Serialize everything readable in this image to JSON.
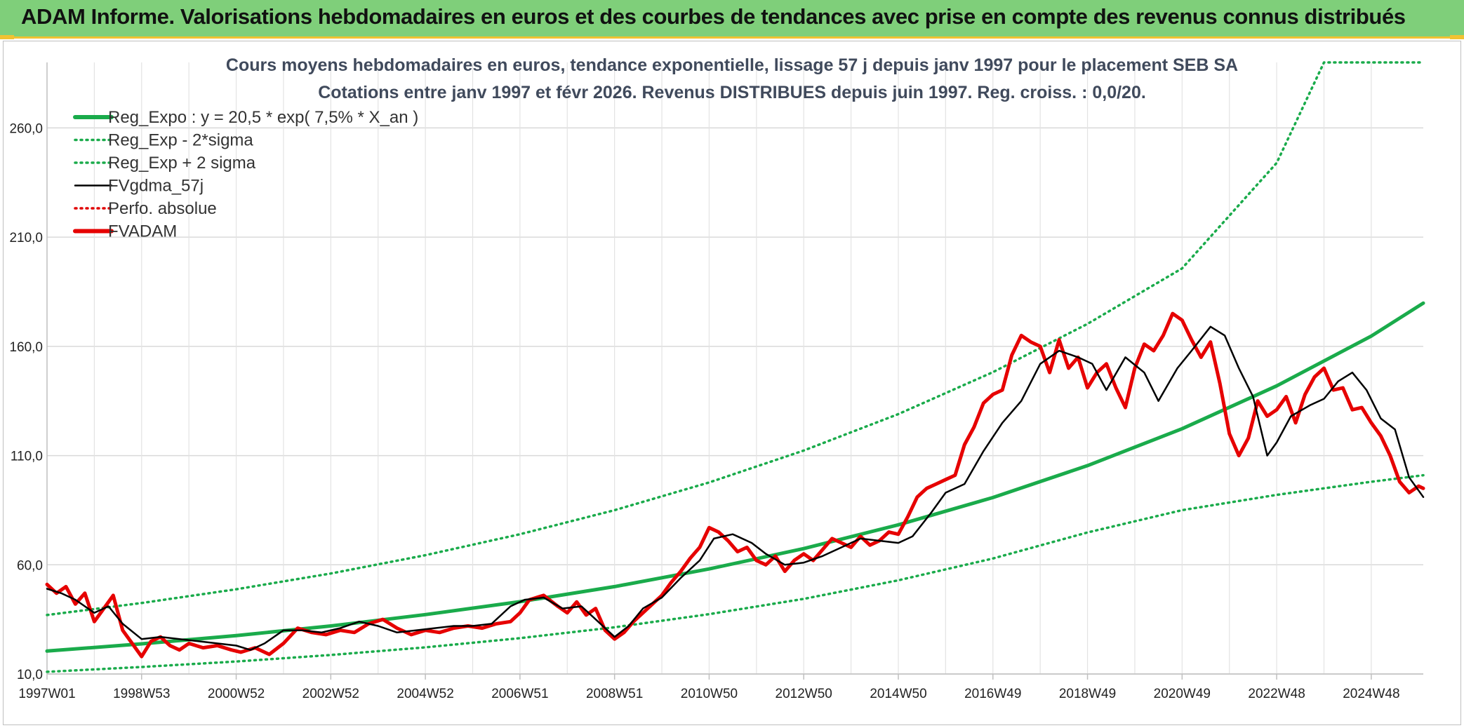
{
  "header": {
    "title": "ADAM Informe. Valorisations hebdomadaires en euros et des courbes de tendances avec prise en compte des revenus connus distribués",
    "bg_color": "#7fcf7a",
    "accent_color": "#f1c232"
  },
  "chart_data": {
    "type": "line",
    "title_line1": "Cours moyens hebdomadaires en euros, tendance exponentielle, lissage 57 j depuis janv 1997 pour le placement SEB SA",
    "title_line2": "Cotations entre janv 1997 et févr 2026. Revenus DISTRIBUES depuis juin 1997. Reg. croiss. : 0,0/20.",
    "ylim": [
      10,
      290
    ],
    "yticks": [
      10,
      60,
      110,
      160,
      210,
      260
    ],
    "ytick_labels": [
      "10,0",
      "60,0",
      "110,0",
      "160,0",
      "210,0",
      "260,0"
    ],
    "xlim": [
      1997.0,
      2026.1
    ],
    "xtick_labels": [
      "1997W01",
      "1998W53",
      "2000W52",
      "2002W52",
      "2004W52",
      "2006W51",
      "2008W51",
      "2010W50",
      "2012W50",
      "2014W50",
      "2016W49",
      "2018W49",
      "2020W49",
      "2022W48",
      "2024W48"
    ],
    "xtick_positions": [
      1997.0,
      1999.0,
      2001.0,
      2003.0,
      2005.0,
      2007.0,
      2009.0,
      2011.0,
      2013.0,
      2015.0,
      2017.0,
      2019.0,
      2021.0,
      2023.0,
      2025.0
    ],
    "grid": true,
    "legend_placement": "top-left",
    "series": [
      {
        "name": "Reg_Expo : y = 20,5 * exp( 7,5% *  X_an )",
        "color": "#1aab4b",
        "style": "solid-thick",
        "x": [
          1997.0,
          1999.0,
          2001.0,
          2003.0,
          2005.0,
          2007.0,
          2009.0,
          2011.0,
          2013.0,
          2015.0,
          2017.0,
          2019.0,
          2021.0,
          2023.0,
          2025.0,
          2026.1
        ],
        "values": [
          20.5,
          23.8,
          27.6,
          32.0,
          37.2,
          43.1,
          50.0,
          58.1,
          67.4,
          78.3,
          90.8,
          105.4,
          122.3,
          141.9,
          164.7,
          179.8
        ]
      },
      {
        "name": "Reg_Exp - 2*sigma",
        "color": "#1aab4b",
        "style": "dotted",
        "x": [
          1997.0,
          1999.0,
          2001.0,
          2003.0,
          2005.0,
          2007.0,
          2009.0,
          2011.0,
          2013.0,
          2015.0,
          2017.0,
          2019.0,
          2021.0,
          2023.0,
          2025.0,
          2026.1
        ],
        "values": [
          11.0,
          13.2,
          15.7,
          18.7,
          22.2,
          26.4,
          31.4,
          37.4,
          44.4,
          52.9,
          62.9,
          74.8,
          85.0,
          92.0,
          98.0,
          101.0
        ]
      },
      {
        "name": "Reg_Exp + 2 sigma",
        "color": "#1aab4b",
        "style": "dotted",
        "x": [
          1997.0,
          1999.0,
          2001.0,
          2003.0,
          2005.0,
          2007.0,
          2009.0,
          2011.0,
          2013.0,
          2015.0,
          2017.0,
          2019.0,
          2021.0,
          2023.0,
          2024.0,
          2026.1
        ],
        "values": [
          37.0,
          42.5,
          48.8,
          56.0,
          64.4,
          74.0,
          85.0,
          97.7,
          112.3,
          129.0,
          148.2,
          170.3,
          195.7,
          244.0,
          290.0,
          290.0
        ]
      },
      {
        "name": "FVgdma_57j",
        "color": "#000000",
        "style": "solid",
        "x": [
          1997.0,
          1997.3,
          1997.6,
          1998.0,
          1998.3,
          1998.6,
          1999.0,
          1999.4,
          1999.8,
          2000.2,
          2000.6,
          2001.0,
          2001.3,
          2001.6,
          2002.0,
          2002.4,
          2002.8,
          2003.2,
          2003.6,
          2004.0,
          2004.4,
          2004.8,
          2005.2,
          2005.6,
          2006.0,
          2006.4,
          2006.8,
          2007.1,
          2007.5,
          2007.9,
          2008.3,
          2008.6,
          2009.0,
          2009.3,
          2009.6,
          2010.0,
          2010.4,
          2010.8,
          2011.1,
          2011.5,
          2011.9,
          2012.2,
          2012.6,
          2013.0,
          2013.4,
          2013.8,
          2014.2,
          2014.6,
          2015.0,
          2015.3,
          2015.7,
          2016.0,
          2016.4,
          2016.8,
          2017.2,
          2017.6,
          2018.0,
          2018.4,
          2018.8,
          2019.1,
          2019.4,
          2019.8,
          2020.2,
          2020.5,
          2020.9,
          2021.2,
          2021.6,
          2021.9,
          2022.2,
          2022.5,
          2022.8,
          2023.0,
          2023.3,
          2023.7,
          2024.0,
          2024.3,
          2024.6,
          2024.9,
          2025.2,
          2025.5,
          2025.8,
          2026.1
        ],
        "values": [
          49,
          47,
          44,
          38,
          41,
          33,
          26,
          27,
          26,
          25,
          24,
          23,
          21,
          24,
          30,
          30,
          29,
          31,
          34,
          32,
          29,
          30,
          31,
          32,
          32,
          33,
          41,
          44,
          45,
          40,
          41,
          35,
          27,
          32,
          40,
          45,
          54,
          62,
          72,
          74,
          70,
          65,
          60,
          61,
          64,
          68,
          72,
          71,
          70,
          73,
          84,
          93,
          97,
          112,
          125,
          135,
          152,
          158,
          155,
          152,
          140,
          155,
          148,
          135,
          150,
          158,
          169,
          165,
          150,
          137,
          110,
          116,
          128,
          133,
          136,
          144,
          148,
          140,
          127,
          122,
          100,
          91
        ]
      },
      {
        "name": "Perfo. absolue",
        "color": "#e00000",
        "style": "dotted",
        "x": [],
        "values": []
      },
      {
        "name": "FVADAM",
        "color": "#e60000",
        "style": "solid-thick",
        "x": [
          1997.0,
          1997.2,
          1997.4,
          1997.6,
          1997.8,
          1998.0,
          1998.2,
          1998.4,
          1998.6,
          1998.8,
          1999.0,
          1999.2,
          1999.4,
          1999.6,
          1999.8,
          2000.0,
          2000.3,
          2000.6,
          2000.9,
          2001.1,
          2001.4,
          2001.7,
          2002.0,
          2002.3,
          2002.6,
          2002.9,
          2003.2,
          2003.5,
          2003.8,
          2004.1,
          2004.4,
          2004.7,
          2005.0,
          2005.3,
          2005.6,
          2005.9,
          2006.2,
          2006.5,
          2006.8,
          2007.0,
          2007.2,
          2007.5,
          2007.8,
          2008.0,
          2008.2,
          2008.4,
          2008.6,
          2008.8,
          2009.0,
          2009.2,
          2009.4,
          2009.6,
          2009.8,
          2010.0,
          2010.2,
          2010.4,
          2010.6,
          2010.8,
          2011.0,
          2011.2,
          2011.4,
          2011.6,
          2011.8,
          2012.0,
          2012.2,
          2012.4,
          2012.6,
          2012.8,
          2013.0,
          2013.2,
          2013.4,
          2013.6,
          2013.8,
          2014.0,
          2014.2,
          2014.4,
          2014.6,
          2014.8,
          2015.0,
          2015.2,
          2015.4,
          2015.6,
          2015.8,
          2016.0,
          2016.2,
          2016.4,
          2016.6,
          2016.8,
          2017.0,
          2017.2,
          2017.4,
          2017.6,
          2017.8,
          2018.0,
          2018.2,
          2018.4,
          2018.6,
          2018.8,
          2019.0,
          2019.2,
          2019.4,
          2019.6,
          2019.8,
          2020.0,
          2020.2,
          2020.4,
          2020.6,
          2020.8,
          2021.0,
          2021.2,
          2021.4,
          2021.6,
          2021.8,
          2022.0,
          2022.2,
          2022.4,
          2022.6,
          2022.8,
          2023.0,
          2023.2,
          2023.4,
          2023.6,
          2023.8,
          2024.0,
          2024.2,
          2024.4,
          2024.6,
          2024.8,
          2025.0,
          2025.2,
          2025.4,
          2025.6,
          2025.8,
          2026.0,
          2026.1
        ],
        "values": [
          51,
          47,
          50,
          42,
          47,
          34,
          40,
          46,
          30,
          24,
          18,
          25,
          27,
          23,
          21,
          24,
          22,
          23,
          21,
          20,
          22,
          19,
          24,
          31,
          29,
          28,
          30,
          29,
          33,
          35,
          31,
          28,
          30,
          29,
          31,
          32,
          31,
          33,
          34,
          38,
          44,
          46,
          41,
          38,
          43,
          37,
          40,
          30,
          26,
          29,
          34,
          38,
          42,
          46,
          52,
          57,
          63,
          68,
          77,
          75,
          71,
          66,
          68,
          62,
          60,
          64,
          57,
          62,
          65,
          62,
          67,
          72,
          70,
          68,
          73,
          69,
          71,
          75,
          74,
          82,
          91,
          95,
          97,
          99,
          101,
          115,
          123,
          134,
          138,
          140,
          156,
          165,
          162,
          160,
          148,
          163,
          150,
          155,
          141,
          148,
          152,
          141,
          132,
          150,
          161,
          158,
          165,
          175,
          172,
          163,
          155,
          162,
          143,
          120,
          110,
          118,
          135,
          128,
          131,
          137,
          125,
          138,
          146,
          150,
          140,
          141,
          131,
          132,
          125,
          119,
          110,
          98,
          93,
          96,
          95
        ]
      }
    ]
  }
}
